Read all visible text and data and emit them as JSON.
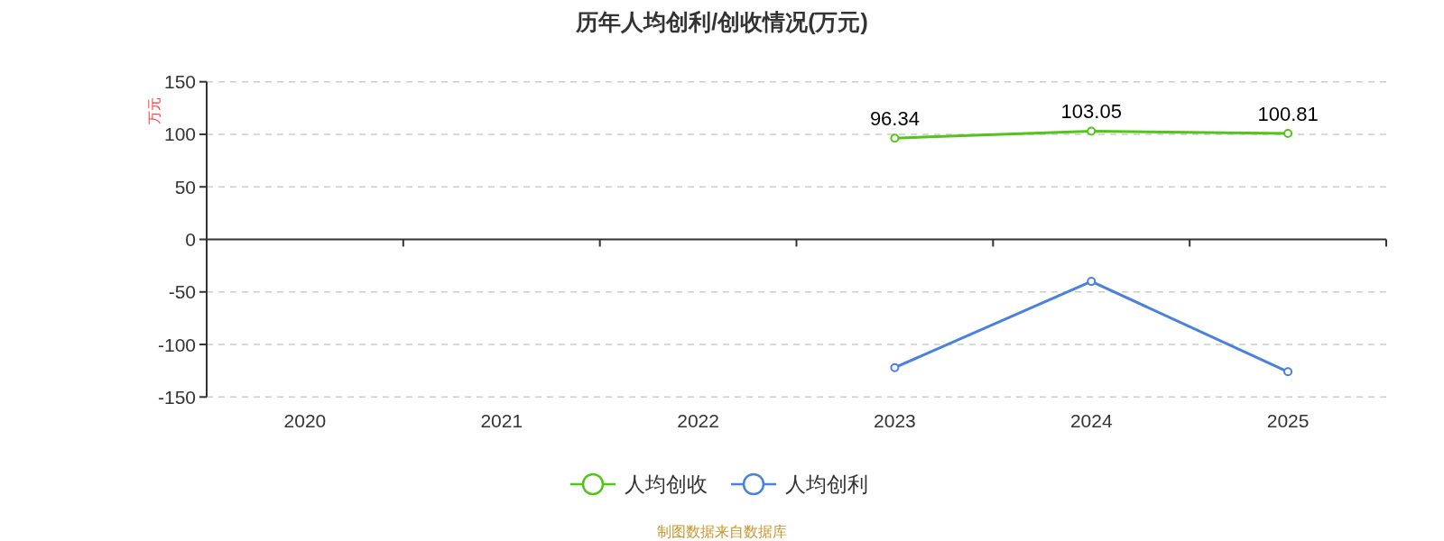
{
  "chart_data": {
    "type": "line",
    "title": "历年人均创利/创收情况(万元)",
    "ylabel": "万元",
    "categories": [
      "2020",
      "2021",
      "2022",
      "2023",
      "2024",
      "2025"
    ],
    "series": [
      {
        "name": "人均创收",
        "color": "#52c41a",
        "values": [
          null,
          null,
          null,
          96.34,
          103.05,
          100.81
        ],
        "value_labels": [
          null,
          null,
          null,
          "96.34",
          "103.05",
          "100.81"
        ]
      },
      {
        "name": "人均创利",
        "color": "#4a80e0",
        "values": [
          null,
          null,
          null,
          -122,
          -40,
          -126
        ]
      }
    ],
    "ylim": [
      -150,
      150
    ],
    "yticks": [
      -150,
      -100,
      -50,
      0,
      50,
      100,
      150
    ],
    "grid": "y",
    "legend": "bottom",
    "marker": "circle",
    "line_style": "solid",
    "annotations": [
      "制图数据来自数据库"
    ]
  }
}
